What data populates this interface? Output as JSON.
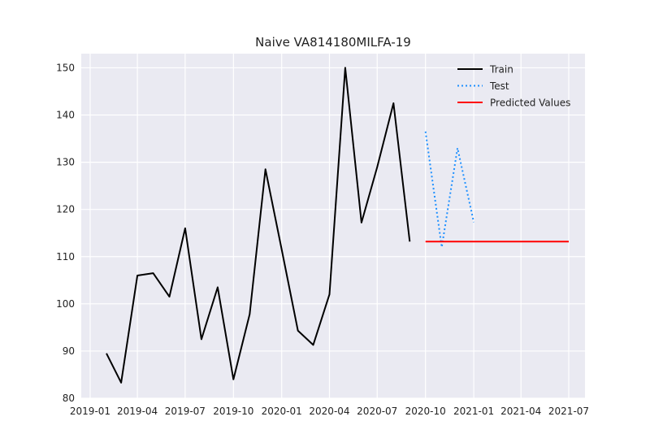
{
  "chart_data": {
    "type": "line",
    "title": "Naive VA814180MILFA-19",
    "xlabel": "",
    "ylabel": "",
    "xlim": [
      "2018-12-15",
      "2021-08-01"
    ],
    "ylim": [
      80,
      153
    ],
    "grid": true,
    "legend_position": "top-right",
    "x_ticks": [
      "2019-01",
      "2019-04",
      "2019-07",
      "2019-10",
      "2020-01",
      "2020-04",
      "2020-07",
      "2020-10",
      "2021-01",
      "2021-04",
      "2021-07"
    ],
    "y_ticks": [
      80,
      90,
      100,
      110,
      120,
      130,
      140,
      150
    ],
    "series": [
      {
        "name": "Train",
        "color": "#000000",
        "style": "solid",
        "x": [
          "2019-02-01",
          "2019-03-01",
          "2019-04-01",
          "2019-05-01",
          "2019-06-01",
          "2019-07-01",
          "2019-08-01",
          "2019-09-01",
          "2019-10-01",
          "2019-11-01",
          "2019-12-01",
          "2020-01-01",
          "2020-02-01",
          "2020-03-01",
          "2020-04-01",
          "2020-05-01",
          "2020-06-01",
          "2020-07-01",
          "2020-08-01",
          "2020-09-01"
        ],
        "values": [
          89.5,
          83.3,
          106.0,
          106.5,
          101.5,
          116.0,
          92.5,
          103.5,
          84.0,
          97.8,
          128.5,
          111.5,
          94.3,
          91.3,
          102.0,
          150.0,
          117.2,
          129.0,
          142.5,
          113.2
        ]
      },
      {
        "name": "Test",
        "color": "#1e90ff",
        "style": "dotted",
        "x": [
          "2020-10-01",
          "2020-11-01",
          "2020-12-01",
          "2021-01-01"
        ],
        "values": [
          136.5,
          112.0,
          133.0,
          117.3
        ]
      },
      {
        "name": "Predicted Values",
        "color": "#ff0000",
        "style": "solid",
        "x": [
          "2020-10-01",
          "2021-07-01"
        ],
        "values": [
          113.2,
          113.2
        ]
      }
    ]
  }
}
